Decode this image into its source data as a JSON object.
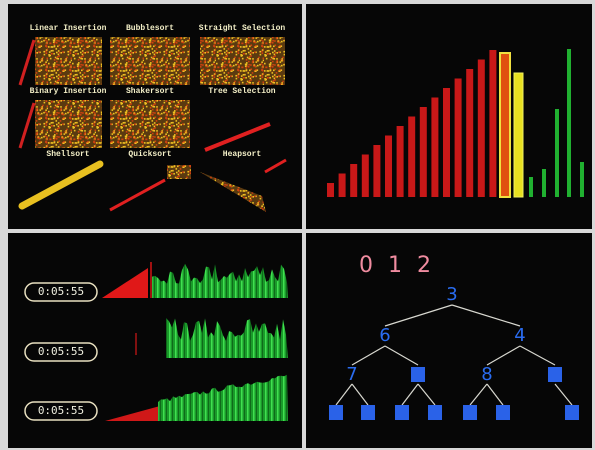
{
  "panel_sorts": {
    "labels": [
      "Linear Insertion",
      "Bubblesort",
      "Straight Selection",
      "Binary Insertion",
      "Shakersort",
      "Tree Selection",
      "Shellsort",
      "Quicksort",
      "Heapsort"
    ]
  },
  "panel_timers": {
    "times": [
      "0:05:55",
      "0:05:55",
      "0:05:55"
    ]
  },
  "panel_tree": {
    "header": "0 1 2",
    "nodes": [
      "3",
      "6",
      "4",
      "7",
      "8"
    ]
  }
}
